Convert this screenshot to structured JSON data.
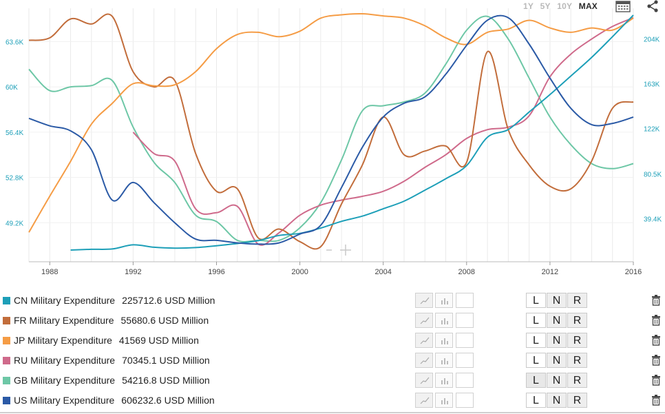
{
  "range_selector": {
    "options": [
      "1Y",
      "5Y",
      "10Y",
      "MAX"
    ],
    "active": "MAX"
  },
  "icons": {
    "calendar": "calendar-icon",
    "share": "share-icon",
    "delete": "trash-icon",
    "line_type": "line-chart-icon",
    "bar_type": "bar-chart-icon"
  },
  "axis_buttons": [
    "L",
    "N",
    "R"
  ],
  "legend": [
    {
      "name": "CN Military Expenditure",
      "value": "225712.6 USD Million",
      "color": "#1d9fb8"
    },
    {
      "name": "FR Military Expenditure",
      "value": "55680.6 USD Million",
      "color": "#c26d3b"
    },
    {
      "name": "JP Military Expenditure",
      "value": "41569 USD Million",
      "color": "#f59c45"
    },
    {
      "name": "RU Military Expenditure",
      "value": "70345.1 USD Million",
      "color": "#cf6a8b"
    },
    {
      "name": "GB Military Expenditure",
      "value": "54216.8 USD Million",
      "color": "#6dc7a6"
    },
    {
      "name": "US Military Expenditure",
      "value": "606232.6 USD Million",
      "color": "#2b5aa6"
    }
  ],
  "chart_data": {
    "type": "line",
    "x_ticks": [
      "1988",
      "1992",
      "1996",
      "2000",
      "2004",
      "2008",
      "2012",
      "2016"
    ],
    "xlim": [
      1987,
      2016
    ],
    "left_axis": {
      "ticks": [
        "49.2K",
        "52.8K",
        "56.4K",
        "60K",
        "63.6K"
      ],
      "tick_values": [
        49200,
        52800,
        56400,
        60000,
        63600
      ],
      "color": "#1d9fb8",
      "ylim": [
        46100,
        65700
      ]
    },
    "right_axis": {
      "ticks": [
        "39.4K",
        "80.5K",
        "122K",
        "163K",
        "204K"
      ],
      "tick_values": [
        39400,
        80500,
        122000,
        163000,
        204000
      ],
      "color": "#1d9fb8",
      "ylim": [
        0,
        225712.6
      ]
    },
    "grid": true,
    "series": [
      {
        "name": "CN Military Expenditure",
        "color": "#1d9fb8",
        "x": [
          1989,
          1990,
          1991,
          1992,
          1993,
          1994,
          1995,
          1996,
          1997,
          1998,
          1999,
          2000,
          2001,
          2002,
          2003,
          2004,
          2005,
          2006,
          2007,
          2008,
          2009,
          2010,
          2011,
          2012,
          2013,
          2014,
          2015,
          2016
        ],
        "y": [
          10700,
          11400,
          11700,
          15500,
          13300,
          12500,
          13000,
          14700,
          16700,
          19300,
          24100,
          26000,
          30800,
          37000,
          41800,
          48500,
          55500,
          65500,
          76000,
          88000,
          114000,
          121000,
          137000,
          153000,
          170000,
          187000,
          206000,
          225712.6
        ]
      },
      {
        "name": "FR Military Expenditure",
        "color": "#c26d3b",
        "x": [
          1987,
          1988,
          1989,
          1990,
          1991,
          1992,
          1993,
          1994,
          1995,
          1996,
          1997,
          1998,
          1999,
          2000,
          2001,
          2002,
          2003,
          2004,
          2005,
          2006,
          2007,
          2008,
          2009,
          2010,
          2011,
          2012,
          2013,
          2014,
          2015,
          2016
        ],
        "y": [
          63700,
          63900,
          65400,
          65000,
          65600,
          61200,
          60000,
          60500,
          54700,
          51700,
          51900,
          48000,
          48700,
          47700,
          47300,
          50700,
          53800,
          57600,
          54600,
          54900,
          55300,
          54000,
          62800,
          56600,
          53800,
          52100,
          51900,
          54100,
          58300,
          58800
        ]
      },
      {
        "name": "JP Military Expenditure",
        "color": "#f59c45",
        "x": [
          1987,
          1988,
          1989,
          1990,
          1991,
          1992,
          1993,
          1994,
          1995,
          1996,
          1997,
          1998,
          1999,
          2000,
          2001,
          2002,
          2003,
          2004,
          2005,
          2006,
          2007,
          2008,
          2009,
          2010,
          2011,
          2012,
          2013,
          2014,
          2015,
          2016
        ],
        "y": [
          27000,
          60000,
          92000,
          126000,
          145000,
          163000,
          161000,
          162000,
          174000,
          195000,
          208000,
          210000,
          206000,
          211000,
          223000,
          226000,
          227000,
          225000,
          223000,
          216000,
          205000,
          199000,
          210000,
          213000,
          221000,
          214000,
          210000,
          214000,
          212000,
          223000
        ]
      },
      {
        "name": "RU Military Expenditure",
        "color": "#cf6a8b",
        "x": [
          1992,
          1993,
          1994,
          1995,
          1996,
          1997,
          1998,
          1999,
          2000,
          2001,
          2002,
          2003,
          2004,
          2005,
          2006,
          2007,
          2008,
          2009,
          2010,
          2011,
          2012,
          2013,
          2014,
          2015,
          2016
        ],
        "y": [
          56400,
          54700,
          54100,
          50300,
          50000,
          50500,
          47500,
          48400,
          49800,
          50600,
          51000,
          51300,
          51700,
          52500,
          53600,
          54600,
          55900,
          56600,
          56800,
          57700,
          60800,
          62600,
          63800,
          64800,
          65500
        ]
      },
      {
        "name": "GB Military Expenditure",
        "color": "#6dc7a6",
        "x": [
          1987,
          1988,
          1989,
          1990,
          1991,
          1992,
          1993,
          1994,
          1995,
          1996,
          1997,
          1998,
          1999,
          2000,
          2001,
          2002,
          2003,
          2004,
          2005,
          2006,
          2007,
          2008,
          2009,
          2010,
          2011,
          2012,
          2013,
          2014,
          2015,
          2016
        ],
        "y": [
          61400,
          59700,
          60000,
          60100,
          60500,
          56800,
          54000,
          52400,
          49800,
          49300,
          47800,
          47800,
          47800,
          48800,
          50800,
          54200,
          58100,
          58500,
          58800,
          59500,
          61800,
          64500,
          65600,
          63800,
          60700,
          57600,
          55400,
          53900,
          53500,
          53900
        ]
      },
      {
        "name": "US Military Expenditure",
        "color": "#2b5aa6",
        "x": [
          1987,
          1988,
          1989,
          1990,
          1991,
          1992,
          1993,
          1994,
          1995,
          1996,
          1997,
          1998,
          1999,
          2000,
          2001,
          2002,
          2003,
          2004,
          2005,
          2006,
          2007,
          2008,
          2009,
          2010,
          2011,
          2012,
          2013,
          2014,
          2015,
          2016
        ],
        "y": [
          57500,
          56900,
          56500,
          55000,
          51000,
          52400,
          50800,
          49200,
          47900,
          47800,
          47600,
          47500,
          47600,
          48300,
          49000,
          52000,
          55200,
          57600,
          58700,
          59200,
          61000,
          63300,
          65300,
          65500,
          63400,
          60700,
          58300,
          57000,
          57100,
          57600
        ]
      }
    ]
  }
}
